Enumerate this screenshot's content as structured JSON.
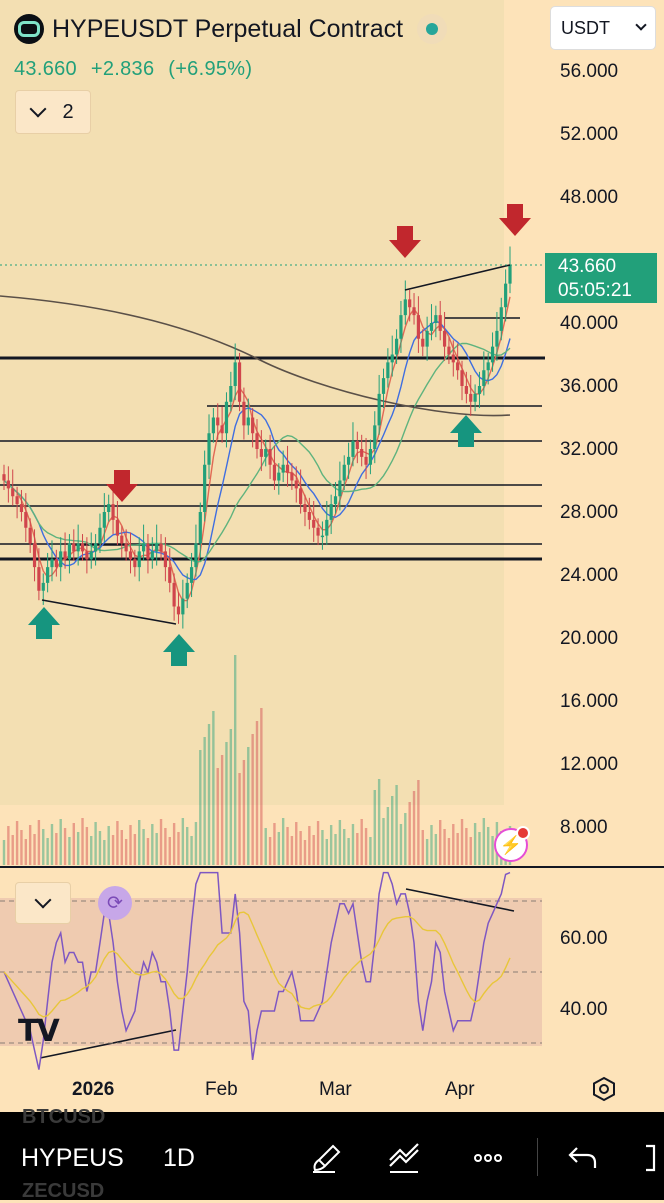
{
  "header": {
    "title": "HYPEUSDT Perpetual Contract",
    "last": "43.660",
    "change": "+2.836",
    "change_pct": "(+6.95%)",
    "collapse_count": "2"
  },
  "currency_select": {
    "value": "USDT"
  },
  "price_axis": {
    "labels": [
      "56.000",
      "52.000",
      "48.000",
      "40.000",
      "36.000",
      "32.000",
      "28.000",
      "24.000",
      "20.000",
      "16.000",
      "12.000",
      "8.000"
    ]
  },
  "last_price_tag": {
    "price": "43.660",
    "countdown": "05:05:21"
  },
  "rsi": {
    "axis_labels": [
      "60.00",
      "40.00"
    ]
  },
  "time_axis": {
    "labels": [
      "2026",
      "Feb",
      "Mar",
      "Apr"
    ]
  },
  "toolbar": {
    "symbol": "HYPEUS",
    "interval": "1D",
    "ghost_top": "BTCUSD",
    "ghost_bottom": "ZECUSD"
  },
  "colors": {
    "up": "#22a07a",
    "down": "#d0454c",
    "arrow_up": "#16957f",
    "arrow_down": "#c1272d",
    "ma_fast": "#e06a55",
    "ma_mid": "#3f6ee0",
    "ma_slow": "#5fb37e",
    "ma_long": "#5a5048",
    "rsi_line": "#7e57c2",
    "rsi_ma": "#e8c63a"
  },
  "icons": [
    "chevron-down-icon",
    "refresh-icon",
    "bolt-icon",
    "gear-icon",
    "brush-icon",
    "drawing-tools-icon",
    "more-icon",
    "undo-icon"
  ]
}
